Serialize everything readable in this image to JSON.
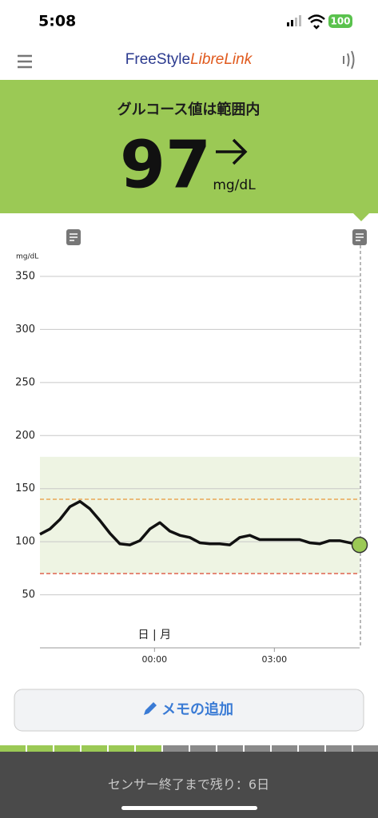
{
  "status_bar": {
    "time": "5:08",
    "battery": "100"
  },
  "header": {
    "brand_1": "FreeStyle",
    "brand_2": "LibreLink"
  },
  "banner": {
    "status": "グルコース値は範囲内",
    "value": "97",
    "unit": "mg/dL"
  },
  "chart_data": {
    "type": "line",
    "y_unit": "mg/dL",
    "day_label": "日 | 月",
    "x": [
      "21:08",
      "21:23",
      "21:38",
      "21:53",
      "22:08",
      "22:23",
      "22:38",
      "22:53",
      "23:08",
      "23:23",
      "23:38",
      "23:53",
      "00:08",
      "00:23",
      "00:38",
      "00:53",
      "01:08",
      "01:23",
      "01:38",
      "01:53",
      "02:08",
      "02:23",
      "02:38",
      "02:53",
      "03:08",
      "03:23",
      "03:38",
      "03:53",
      "04:08",
      "04:23",
      "04:38",
      "04:53",
      "05:08"
    ],
    "series": [
      {
        "color": "#111111",
        "values": [
          107,
          112,
          121,
          133,
          138,
          131,
          120,
          108,
          98,
          97,
          101,
          112,
          118,
          110,
          106,
          104,
          99,
          98,
          98,
          97,
          104,
          106,
          102,
          102,
          102,
          102,
          102,
          99,
          98,
          101,
          101,
          99,
          97
        ]
      }
    ],
    "xlim": [
      "21:08",
      "05:08"
    ],
    "xticks": [
      "00:00",
      "03:00"
    ],
    "ylim": [
      0,
      350
    ],
    "yticks": [
      50,
      100,
      150,
      200,
      250,
      300,
      350
    ],
    "target_range": [
      70,
      180
    ],
    "high_line": 140,
    "low_line": 70,
    "grid": true
  },
  "memo_button": "メモの追加",
  "footer": "センサー終了まで残り：6日"
}
